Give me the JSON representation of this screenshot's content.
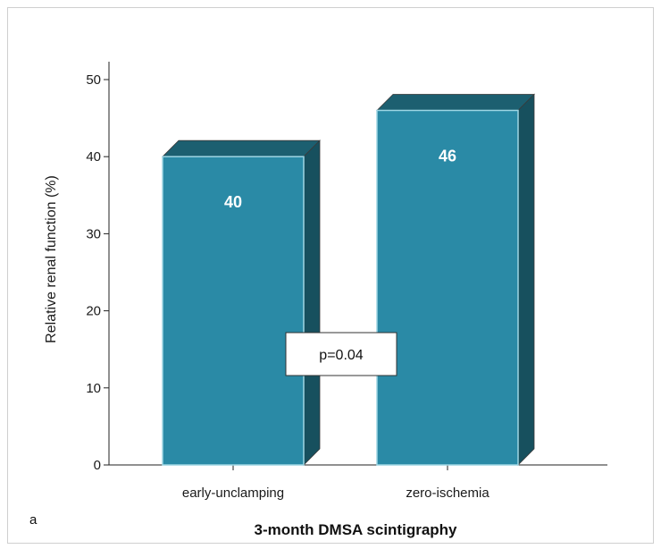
{
  "panel_label": "a",
  "chart_data": {
    "type": "bar",
    "style": "3d",
    "categories": [
      "early-unclamping",
      "zero-ischemia"
    ],
    "values": [
      40,
      46
    ],
    "data_labels": [
      "40",
      "46"
    ],
    "xlabel": "3-month DMSA scintigraphy",
    "ylabel": "Relative renal function (%)",
    "ylim": [
      0,
      50
    ],
    "yticks": [
      0,
      10,
      20,
      30,
      40,
      50
    ],
    "grid": false,
    "annotation": "p=0.04",
    "colors": {
      "bar_front": "#2a8aa6",
      "bar_top": "#1c5f70",
      "bar_side": "#17505e",
      "bar_edge": "#9ed6e4"
    }
  }
}
